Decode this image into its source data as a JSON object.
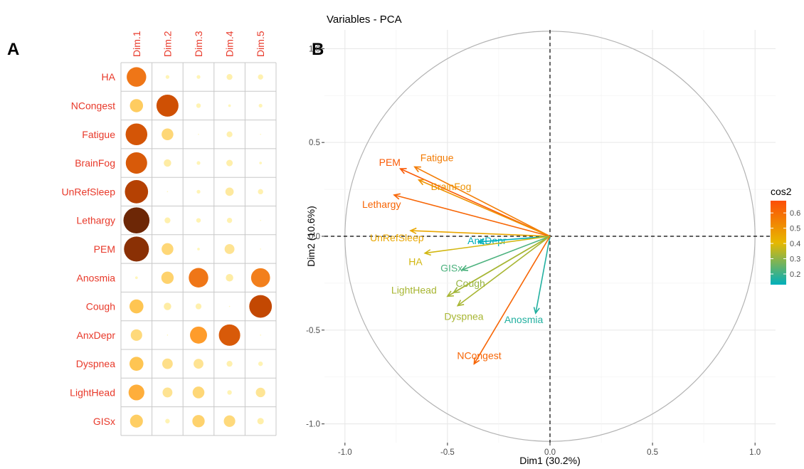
{
  "chart_data": [
    {
      "type": "heatmap",
      "panel_letter": "A",
      "columns": [
        "Dim.1",
        "Dim.2",
        "Dim.3",
        "Dim.4",
        "Dim.5"
      ],
      "rows": [
        "HA",
        "NCongest",
        "Fatigue",
        "BrainFog",
        "UnRefSleep",
        "Lethargy",
        "PEM",
        "Anosmia",
        "Cough",
        "AnxDepr",
        "Dyspnea",
        "LightHead",
        "GISx"
      ],
      "values": [
        [
          0.55,
          0.02,
          0.02,
          0.05,
          0.04
        ],
        [
          0.25,
          0.7,
          0.03,
          0.01,
          0.02
        ],
        [
          0.68,
          0.2,
          0.0,
          0.05,
          0.0
        ],
        [
          0.66,
          0.08,
          0.02,
          0.06,
          0.01
        ],
        [
          0.78,
          0.0,
          0.02,
          0.1,
          0.04
        ],
        [
          0.98,
          0.05,
          0.03,
          0.04,
          0.0
        ],
        [
          0.9,
          0.2,
          0.01,
          0.14,
          0.0
        ],
        [
          0.01,
          0.22,
          0.55,
          0.08,
          0.52
        ],
        [
          0.28,
          0.08,
          0.05,
          0.0,
          0.74
        ],
        [
          0.19,
          0.0,
          0.42,
          0.66,
          0.0
        ],
        [
          0.28,
          0.16,
          0.14,
          0.05,
          0.03
        ],
        [
          0.36,
          0.14,
          0.2,
          0.03,
          0.13
        ],
        [
          0.24,
          0.03,
          0.22,
          0.19,
          0.06
        ]
      ]
    },
    {
      "type": "scatter",
      "panel_letter": "B",
      "title": "Variables - PCA",
      "xlabel": "Dim1 (30.2%)",
      "ylabel": "Dim2 (10.6%)",
      "xlim": [
        -1.1,
        1.1
      ],
      "ylim": [
        -1.1,
        1.1
      ],
      "xticks": [
        "-1.0",
        "-0.5",
        "0.0",
        "0.5",
        "1.0"
      ],
      "yticks": [
        "-1.0",
        "-0.5",
        "0.0",
        "0.5",
        "1.0"
      ],
      "grid": true,
      "legend": {
        "title": "cos2",
        "position": "right",
        "ticks": [
          "0.6",
          "0.5",
          "0.4",
          "0.3",
          "0.2"
        ],
        "tick_values": [
          0.6,
          0.5,
          0.4,
          0.3,
          0.2
        ],
        "range": [
          0.13,
          0.68
        ],
        "colors": [
          "#00AFBB",
          "#E7B800",
          "#FC4E07"
        ]
      },
      "vectors": [
        {
          "name": "PEM",
          "x": -0.73,
          "y": 0.36,
          "cos2": 0.65
        },
        {
          "name": "Fatigue",
          "x": -0.66,
          "y": 0.37,
          "cos2": 0.56
        },
        {
          "name": "BrainFog",
          "x": -0.64,
          "y": 0.3,
          "cos2": 0.5
        },
        {
          "name": "Lethargy",
          "x": -0.76,
          "y": 0.22,
          "cos2": 0.62
        },
        {
          "name": "UnRefSleep",
          "x": -0.68,
          "y": 0.03,
          "cos2": 0.45
        },
        {
          "name": "AnxDepr",
          "x": -0.35,
          "y": -0.03,
          "cos2": 0.13
        },
        {
          "name": "HA",
          "x": -0.61,
          "y": -0.09,
          "cos2": 0.38
        },
        {
          "name": "GISx",
          "x": -0.43,
          "y": -0.18,
          "cos2": 0.22
        },
        {
          "name": "Cough",
          "x": -0.47,
          "y": -0.3,
          "cos2": 0.31
        },
        {
          "name": "LightHead",
          "x": -0.5,
          "y": -0.32,
          "cos2": 0.33
        },
        {
          "name": "Dyspnea",
          "x": -0.45,
          "y": -0.37,
          "cos2": 0.33
        },
        {
          "name": "Anosmia",
          "x": -0.07,
          "y": -0.41,
          "cos2": 0.17
        },
        {
          "name": "NCongest",
          "x": -0.37,
          "y": -0.68,
          "cos2": 0.62
        }
      ]
    }
  ]
}
